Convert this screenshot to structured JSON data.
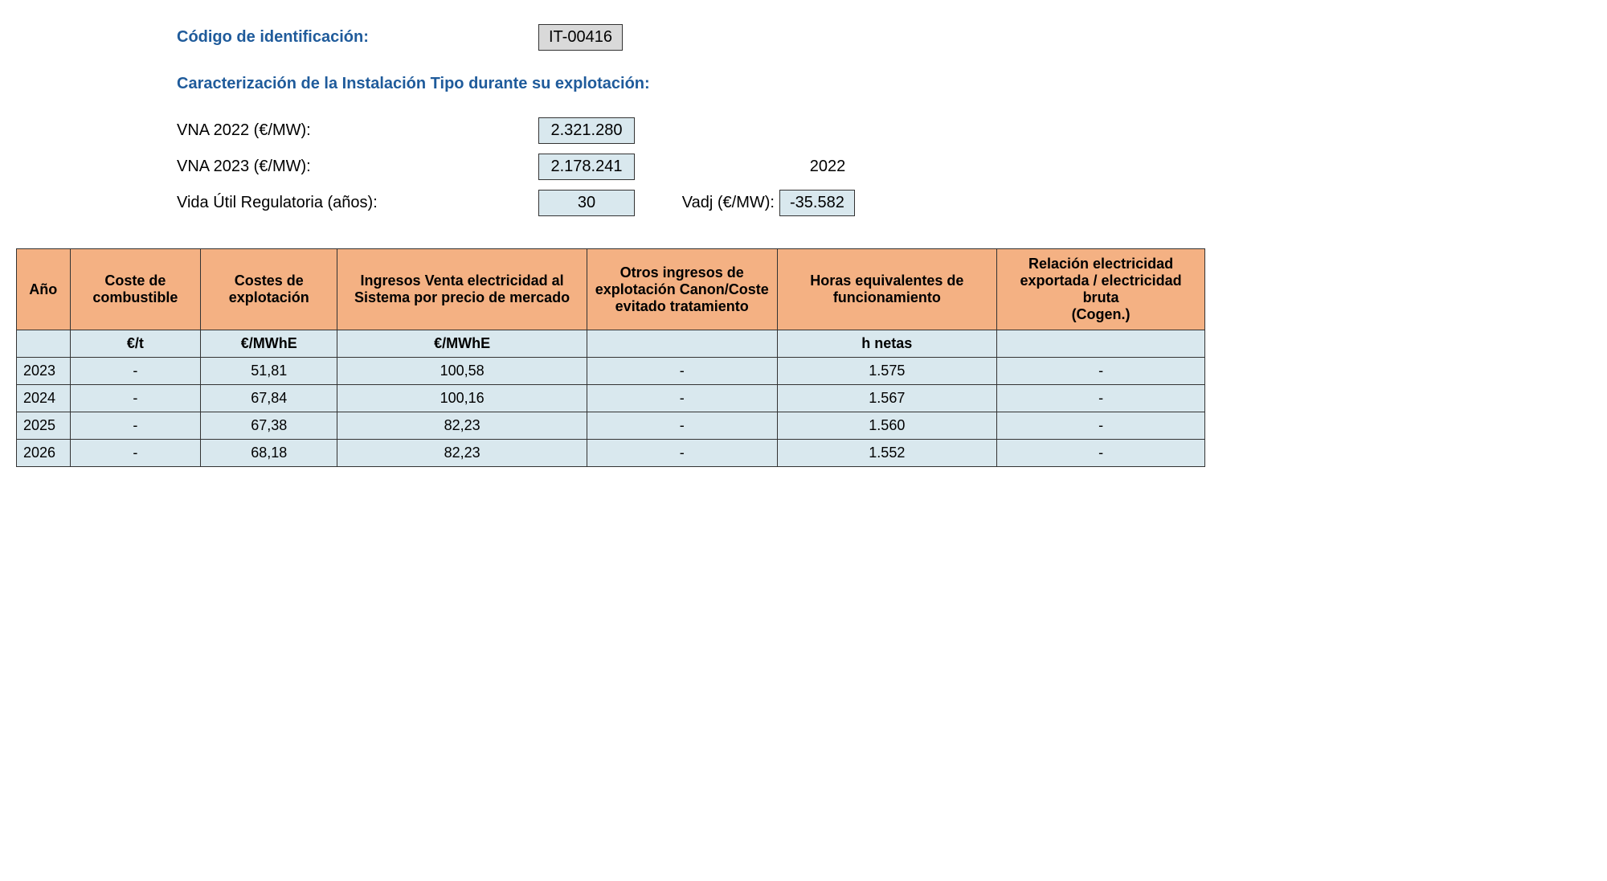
{
  "header": {
    "id_label": "Código de identificación:",
    "id_value": "IT-00416",
    "section_title": "Caracterización de la Instalación Tipo durante su explotación:",
    "params": {
      "vna2022_label": "VNA 2022 (€/MW):",
      "vna2022_value": "2.321.280",
      "vna2023_label": "VNA 2023 (€/MW):",
      "vna2023_value": "2.178.241",
      "ref_year": "2022",
      "life_label": "Vida Útil Regulatoria (años):",
      "life_value": "30",
      "vadj_label": "Vadj (€/MW):",
      "vadj_value": "-35.582"
    }
  },
  "table": {
    "columns": [
      "Año",
      "Coste de combustible",
      "Costes de explotación",
      "Ingresos Venta electricidad al Sistema por precio de mercado",
      "Otros ingresos de explotación Canon/Coste evitado tratamiento",
      "Horas equivalentes de funcionamiento",
      "Relación electricidad exportada / electricidad bruta\n(Cogen.)"
    ],
    "col_widths_pct": [
      4.5,
      11,
      11.5,
      21,
      16,
      18.5,
      17.5
    ],
    "header_bg": "#f4b183",
    "cell_bg": "#d9e8ee",
    "border_color": "#333333",
    "units": [
      "",
      "€/t",
      "€/MWhE",
      "€/MWhE",
      "",
      "h netas",
      ""
    ],
    "rows": [
      [
        "2023",
        "-",
        "51,81",
        "100,58",
        "-",
        "1.575",
        "-"
      ],
      [
        "2024",
        "-",
        "67,84",
        "100,16",
        "-",
        "1.567",
        "-"
      ],
      [
        "2025",
        "-",
        "67,38",
        "82,23",
        "-",
        "1.560",
        "-"
      ],
      [
        "2026",
        "-",
        "68,18",
        "82,23",
        "-",
        "1.552",
        "-"
      ]
    ]
  },
  "colors": {
    "label_blue": "#1f5b9b",
    "box_grey": "#d9d9d9",
    "box_blue": "#d9e8ee"
  }
}
